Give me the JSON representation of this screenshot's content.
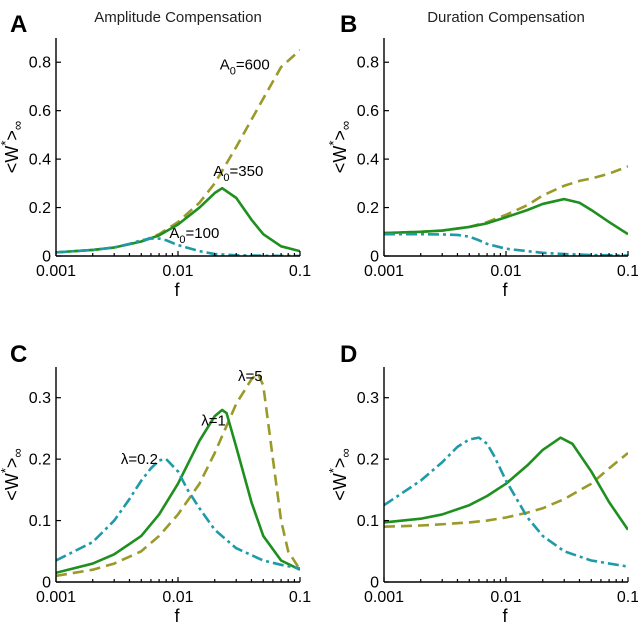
{
  "colors": {
    "olive": "#9a9a2a",
    "green": "#1f8f1f",
    "teal": "#1f9aa8"
  },
  "chart_data": [
    {
      "letter": "A",
      "title": "Amplitude Compensation",
      "type": "line",
      "xscale": "log",
      "xlim": [
        0.001,
        0.1
      ],
      "ylim": [
        0,
        0.9
      ],
      "xticks": [
        0.001,
        0.01,
        0.1
      ],
      "xtick_labels": [
        "0.001",
        "0.01",
        "0.1"
      ],
      "yticks": [
        0,
        0.2,
        0.4,
        0.6,
        0.8
      ],
      "ytick_labels": [
        "0",
        "0.2",
        "0.4",
        "0.6",
        "0.8"
      ],
      "xlabel": "f",
      "ylabel": "<W*>∞",
      "series": [
        {
          "name": "A₀=600",
          "style": "dashed",
          "color": "olive",
          "x": [
            0.001,
            0.002,
            0.003,
            0.005,
            0.007,
            0.01,
            0.015,
            0.02,
            0.03,
            0.05,
            0.07,
            0.1
          ],
          "y": [
            0.015,
            0.025,
            0.035,
            0.06,
            0.09,
            0.14,
            0.22,
            0.3,
            0.45,
            0.65,
            0.78,
            0.85
          ]
        },
        {
          "name": "A₀=350",
          "style": "solid",
          "color": "green",
          "x": [
            0.001,
            0.002,
            0.003,
            0.005,
            0.007,
            0.01,
            0.015,
            0.02,
            0.023,
            0.03,
            0.04,
            0.05,
            0.07,
            0.1
          ],
          "y": [
            0.015,
            0.025,
            0.035,
            0.06,
            0.085,
            0.13,
            0.2,
            0.26,
            0.28,
            0.24,
            0.15,
            0.09,
            0.04,
            0.02
          ]
        },
        {
          "name": "A₀=100",
          "style": "dashdot",
          "color": "teal",
          "x": [
            0.001,
            0.002,
            0.003,
            0.004,
            0.005,
            0.006,
            0.007,
            0.008,
            0.01,
            0.015,
            0.02,
            0.03,
            0.05,
            0.1
          ],
          "y": [
            0.015,
            0.025,
            0.035,
            0.05,
            0.065,
            0.072,
            0.072,
            0.065,
            0.045,
            0.02,
            0.008,
            0.003,
            0.001,
            0.0
          ]
        }
      ],
      "annotations": [
        {
          "base": "A",
          "sub": "0",
          "rest": "=600",
          "x": 0.022,
          "y": 0.77
        },
        {
          "base": "A",
          "sub": "0",
          "rest": "=350",
          "x": 0.0195,
          "y": 0.33
        },
        {
          "base": "A",
          "sub": "0",
          "rest": "=100",
          "x": 0.0085,
          "y": 0.075
        }
      ]
    },
    {
      "letter": "B",
      "title": "Duration Compensation",
      "type": "line",
      "xscale": "log",
      "xlim": [
        0.001,
        0.1
      ],
      "ylim": [
        0,
        0.9
      ],
      "xticks": [
        0.001,
        0.01,
        0.1
      ],
      "xtick_labels": [
        "0.001",
        "0.01",
        "0.1"
      ],
      "yticks": [
        0,
        0.2,
        0.4,
        0.6,
        0.8
      ],
      "ytick_labels": [
        "0",
        "0.2",
        "0.4",
        "0.6",
        "0.8"
      ],
      "xlabel": "f",
      "ylabel": "<W*>∞",
      "series": [
        {
          "style": "dashed",
          "color": "olive",
          "x": [
            0.001,
            0.002,
            0.003,
            0.005,
            0.007,
            0.01,
            0.015,
            0.02,
            0.03,
            0.04,
            0.05,
            0.07,
            0.1
          ],
          "y": [
            0.095,
            0.1,
            0.105,
            0.12,
            0.14,
            0.17,
            0.21,
            0.25,
            0.29,
            0.31,
            0.32,
            0.34,
            0.37
          ]
        },
        {
          "style": "solid",
          "color": "green",
          "x": [
            0.001,
            0.002,
            0.003,
            0.005,
            0.007,
            0.01,
            0.015,
            0.02,
            0.03,
            0.04,
            0.05,
            0.07,
            0.1
          ],
          "y": [
            0.095,
            0.1,
            0.105,
            0.12,
            0.135,
            0.16,
            0.19,
            0.215,
            0.235,
            0.22,
            0.19,
            0.14,
            0.09
          ]
        },
        {
          "style": "dashdot",
          "color": "teal",
          "x": [
            0.001,
            0.002,
            0.003,
            0.004,
            0.005,
            0.006,
            0.007,
            0.01,
            0.015,
            0.02,
            0.03,
            0.05,
            0.1
          ],
          "y": [
            0.09,
            0.09,
            0.089,
            0.087,
            0.08,
            0.065,
            0.05,
            0.03,
            0.02,
            0.013,
            0.008,
            0.004,
            0.002
          ]
        }
      ],
      "annotations": []
    },
    {
      "letter": "C",
      "title": "",
      "type": "line",
      "xscale": "log",
      "xlim": [
        0.001,
        0.1
      ],
      "ylim": [
        0,
        0.35
      ],
      "xticks": [
        0.001,
        0.01,
        0.1
      ],
      "xtick_labels": [
        "0.001",
        "0.01",
        "0.1"
      ],
      "yticks": [
        0,
        0.1,
        0.2,
        0.3
      ],
      "ytick_labels": [
        "0",
        "0.1",
        "0.2",
        "0.3"
      ],
      "xlabel": "f",
      "ylabel": "<W*>∞",
      "series": [
        {
          "name": "λ=5",
          "style": "dashed",
          "color": "olive",
          "x": [
            0.001,
            0.002,
            0.003,
            0.005,
            0.007,
            0.01,
            0.015,
            0.02,
            0.03,
            0.04,
            0.045,
            0.05,
            0.06,
            0.07,
            0.08,
            0.1
          ],
          "y": [
            0.01,
            0.02,
            0.03,
            0.05,
            0.075,
            0.11,
            0.16,
            0.21,
            0.29,
            0.33,
            0.34,
            0.32,
            0.2,
            0.1,
            0.05,
            0.02
          ]
        },
        {
          "name": "λ=1",
          "style": "solid",
          "color": "green",
          "x": [
            0.001,
            0.002,
            0.003,
            0.005,
            0.007,
            0.01,
            0.015,
            0.02,
            0.023,
            0.025,
            0.03,
            0.04,
            0.05,
            0.07,
            0.1
          ],
          "y": [
            0.015,
            0.03,
            0.045,
            0.075,
            0.11,
            0.16,
            0.23,
            0.27,
            0.28,
            0.275,
            0.22,
            0.13,
            0.075,
            0.035,
            0.02
          ]
        },
        {
          "name": "λ=0.2",
          "style": "dashdot",
          "color": "teal",
          "x": [
            0.001,
            0.002,
            0.003,
            0.004,
            0.005,
            0.006,
            0.007,
            0.008,
            0.01,
            0.012,
            0.015,
            0.02,
            0.03,
            0.05,
            0.07,
            0.1
          ],
          "y": [
            0.035,
            0.065,
            0.1,
            0.135,
            0.165,
            0.185,
            0.198,
            0.2,
            0.18,
            0.15,
            0.12,
            0.085,
            0.055,
            0.035,
            0.028,
            0.022
          ]
        }
      ],
      "annotations": [
        {
          "text": "λ=5",
          "x": 0.031,
          "y": 0.327
        },
        {
          "text": "λ=1",
          "x": 0.0155,
          "y": 0.255
        },
        {
          "text": "λ=0.2",
          "x": 0.0034,
          "y": 0.192
        }
      ]
    },
    {
      "letter": "D",
      "title": "",
      "type": "line",
      "xscale": "log",
      "xlim": [
        0.001,
        0.1
      ],
      "ylim": [
        0,
        0.35
      ],
      "xticks": [
        0.001,
        0.01,
        0.1
      ],
      "xtick_labels": [
        "0.001",
        "0.01",
        "0.1"
      ],
      "yticks": [
        0,
        0.1,
        0.2,
        0.3
      ],
      "ytick_labels": [
        "0",
        "0.1",
        "0.2",
        "0.3"
      ],
      "xlabel": "f",
      "ylabel": "<W*>∞",
      "series": [
        {
          "style": "dashed",
          "color": "olive",
          "x": [
            0.001,
            0.002,
            0.003,
            0.005,
            0.007,
            0.01,
            0.015,
            0.02,
            0.03,
            0.05,
            0.07,
            0.1
          ],
          "y": [
            0.09,
            0.092,
            0.094,
            0.097,
            0.1,
            0.105,
            0.113,
            0.12,
            0.135,
            0.16,
            0.185,
            0.21
          ]
        },
        {
          "style": "solid",
          "color": "green",
          "x": [
            0.001,
            0.002,
            0.003,
            0.005,
            0.007,
            0.01,
            0.015,
            0.02,
            0.028,
            0.035,
            0.05,
            0.07,
            0.1
          ],
          "y": [
            0.097,
            0.103,
            0.11,
            0.125,
            0.14,
            0.16,
            0.19,
            0.215,
            0.235,
            0.225,
            0.18,
            0.13,
            0.085
          ]
        },
        {
          "style": "dashdot",
          "color": "teal",
          "x": [
            0.001,
            0.002,
            0.003,
            0.004,
            0.005,
            0.006,
            0.007,
            0.008,
            0.01,
            0.015,
            0.02,
            0.03,
            0.05,
            0.1
          ],
          "y": [
            0.125,
            0.165,
            0.195,
            0.22,
            0.232,
            0.235,
            0.225,
            0.205,
            0.165,
            0.105,
            0.075,
            0.05,
            0.035,
            0.025
          ]
        }
      ],
      "annotations": []
    }
  ]
}
